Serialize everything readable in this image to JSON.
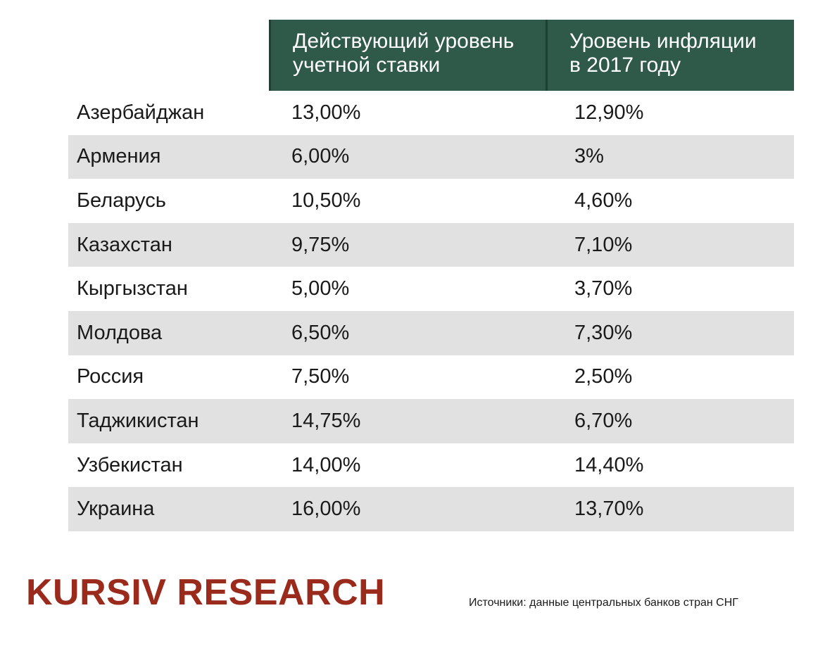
{
  "chart_data": {
    "type": "table",
    "columns": [
      "",
      "Действующий уровень учетной ставки",
      "Уровень инфляции в 2017 году"
    ],
    "header": {
      "rate_line1": "Действующий уровень",
      "rate_line2": "учетной ставки",
      "inflation_line1": "Уровень инфляции",
      "inflation_line2": "в 2017 году"
    },
    "rows": [
      {
        "country": "Азербайджан",
        "rate": "13,00%",
        "inflation": "12,90%"
      },
      {
        "country": "Армения",
        "rate": "6,00%",
        "inflation": "3%"
      },
      {
        "country": "Беларусь",
        "rate": "10,50%",
        "inflation": "4,60%"
      },
      {
        "country": "Казахстан",
        "rate": "9,75%",
        "inflation": "7,10%"
      },
      {
        "country": "Кыргызстан",
        "rate": "5,00%",
        "inflation": "3,70%"
      },
      {
        "country": "Молдова",
        "rate": "6,50%",
        "inflation": "7,30%"
      },
      {
        "country": "Россия",
        "rate": "7,50%",
        "inflation": "2,50%"
      },
      {
        "country": "Таджикистан",
        "rate": "14,75%",
        "inflation": "6,70%"
      },
      {
        "country": "Узбекистан",
        "rate": "14,00%",
        "inflation": "14,40%"
      },
      {
        "country": "Украина",
        "rate": "16,00%",
        "inflation": "13,70%"
      }
    ]
  },
  "brand": "KURSIV RESEARCH",
  "source": "Источники: данные центральных банков стран СНГ",
  "colors": {
    "header_bg": "#2f5949",
    "stripe": "#e1e1e1",
    "brand": "#9a2a1c"
  }
}
